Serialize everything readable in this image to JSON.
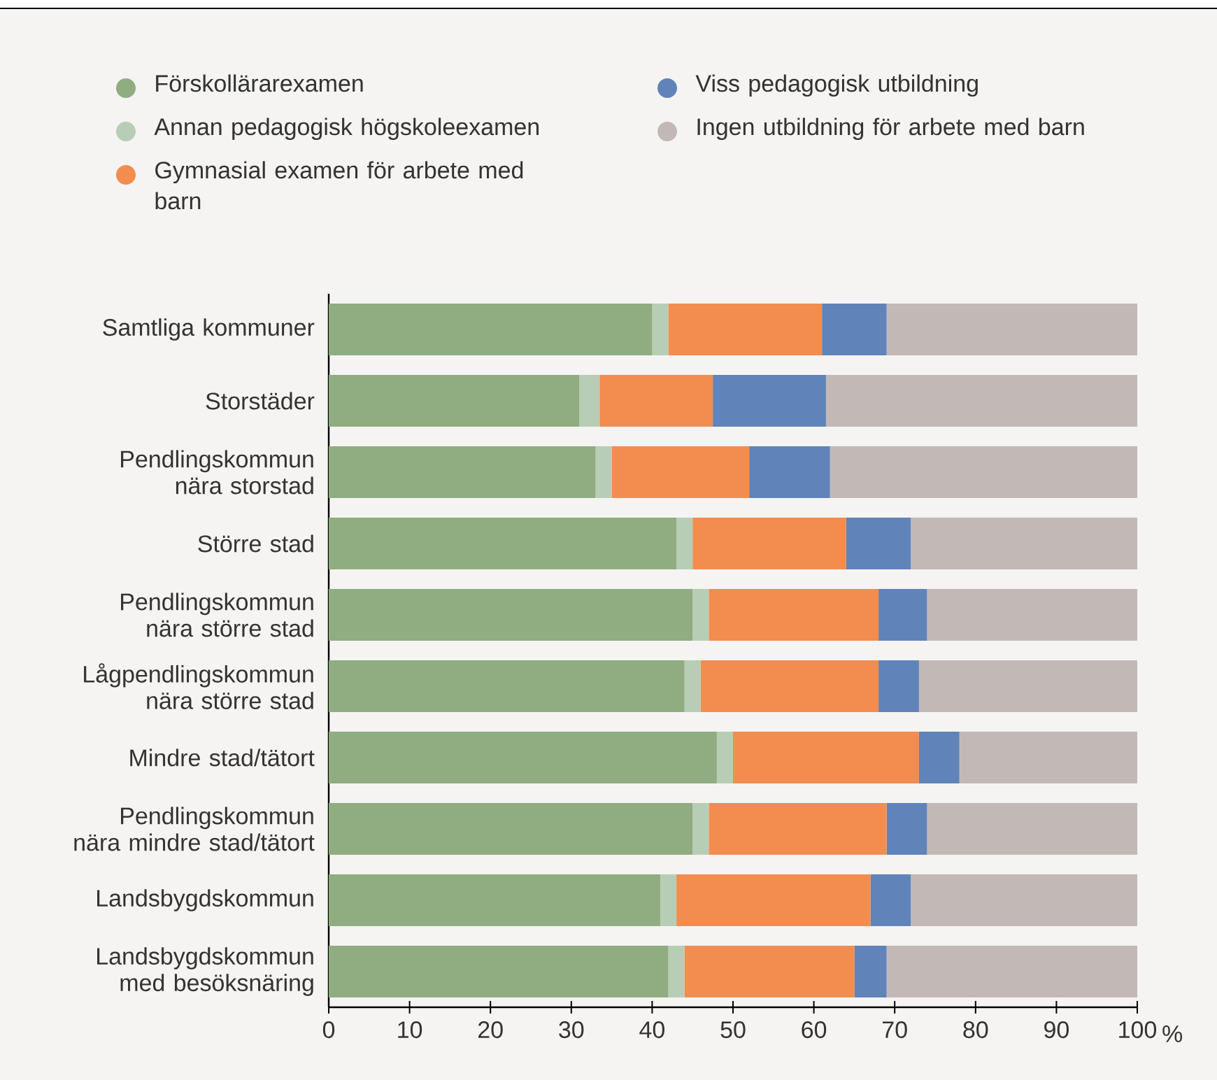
{
  "chart_data": {
    "type": "bar",
    "orientation": "horizontal",
    "stacked": true,
    "legend": "top",
    "xlabel": "%",
    "categories": [
      "Samtliga kommuner",
      "Storstäder",
      "Pendlingskommun nära storstad",
      "Större stad",
      "Pendlingskommun nära större stad",
      "Lågpendlingskommun nära större stad",
      "Mindre stad/tätort",
      "Pendlingskommun nära mindre stad/tätort",
      "Landsbygdskommun",
      "Landsbygdskommun med besöksnäring"
    ],
    "xlim": [
      0,
      100
    ],
    "xticks": [
      0,
      10,
      20,
      30,
      40,
      50,
      60,
      70,
      80,
      90,
      100
    ],
    "series": [
      {
        "name": "Förskollärarexamen",
        "color": "#8fad80",
        "values": [
          40,
          31,
          33,
          43,
          45,
          44,
          48,
          45,
          41,
          42
        ]
      },
      {
        "name": "Annan pedagogisk högskoleexamen",
        "color": "#b8cdb5",
        "values": [
          2,
          2.5,
          2,
          2,
          2,
          2,
          2,
          2,
          2,
          2
        ]
      },
      {
        "name": "Gymnasial examen för arbete med barn",
        "color": "#f28d4f",
        "values": [
          19,
          14,
          17,
          19,
          21,
          22,
          23,
          22,
          24,
          21
        ]
      },
      {
        "name": "Viss pedagogisk utbildning",
        "color": "#6083b9",
        "values": [
          8,
          14,
          10,
          8,
          6,
          5,
          5,
          5,
          5,
          4
        ]
      },
      {
        "name": "Ingen utbildning för arbete med barn",
        "color": "#c2b9b6",
        "values": [
          31,
          38.5,
          38,
          28,
          26,
          27,
          22,
          26,
          28,
          31
        ]
      }
    ]
  }
}
